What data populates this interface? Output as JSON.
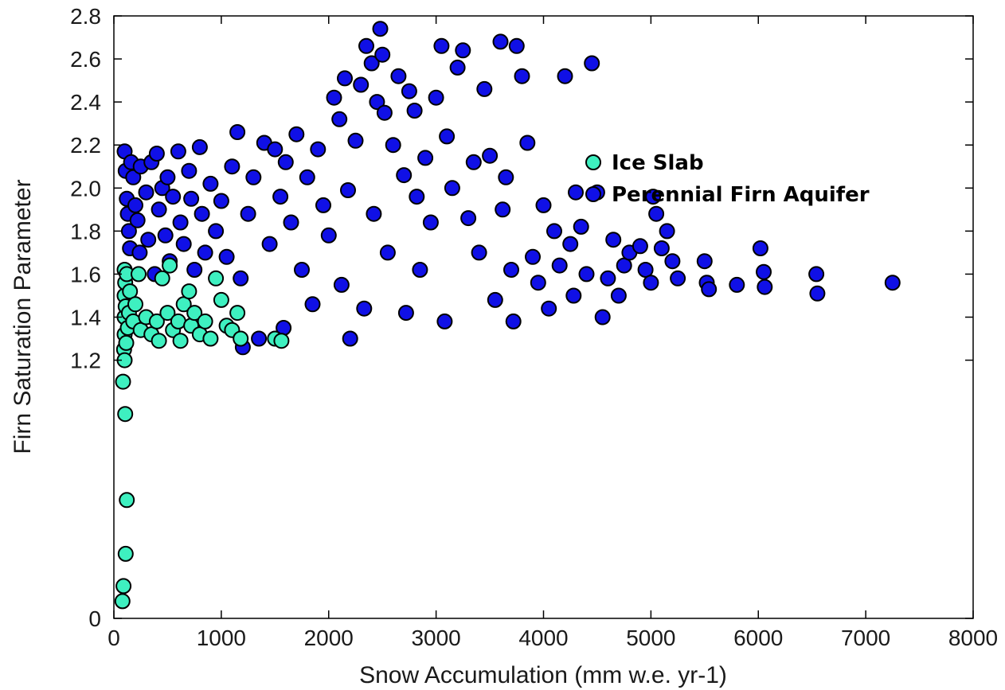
{
  "chart_data": {
    "type": "scatter",
    "title": "",
    "xlabel": "Snow Accumulation (mm w.e. yr-1)",
    "ylabel": "Firn Saturation Parameter",
    "xlim": [
      0,
      8000
    ],
    "ylim": [
      0,
      2.8
    ],
    "x_ticks": [
      "0",
      "1000",
      "2000",
      "3000",
      "4000",
      "5000",
      "6000",
      "7000",
      "8000"
    ],
    "y_ticks": [
      "0",
      "1.2",
      "1.4",
      "1.6",
      "1.8",
      "2.0",
      "2.2",
      "2.4",
      "2.6",
      "2.8"
    ],
    "y_tick_values": [
      0,
      1.2,
      1.4,
      1.6,
      1.8,
      2.0,
      2.2,
      2.4,
      2.6,
      2.8
    ],
    "grid": false,
    "legend_position": "upper-right inside plot",
    "series": [
      {
        "name": "Perennial Firn Aquifer",
        "color": "#1010e6",
        "edge_color": "#000000",
        "points": [
          [
            100,
            2.17
          ],
          [
            110,
            2.08
          ],
          [
            120,
            1.95
          ],
          [
            130,
            1.88
          ],
          [
            140,
            1.8
          ],
          [
            150,
            1.72
          ],
          [
            160,
            2.12
          ],
          [
            180,
            2.05
          ],
          [
            200,
            1.92
          ],
          [
            220,
            1.85
          ],
          [
            240,
            1.7
          ],
          [
            250,
            2.1
          ],
          [
            300,
            1.98
          ],
          [
            320,
            1.76
          ],
          [
            350,
            2.12
          ],
          [
            380,
            1.6
          ],
          [
            400,
            2.16
          ],
          [
            420,
            1.9
          ],
          [
            450,
            2.0
          ],
          [
            480,
            1.78
          ],
          [
            500,
            2.05
          ],
          [
            520,
            1.66
          ],
          [
            550,
            1.96
          ],
          [
            600,
            2.17
          ],
          [
            620,
            1.84
          ],
          [
            650,
            1.74
          ],
          [
            700,
            2.08
          ],
          [
            720,
            1.95
          ],
          [
            750,
            1.62
          ],
          [
            800,
            2.19
          ],
          [
            820,
            1.88
          ],
          [
            850,
            1.7
          ],
          [
            900,
            2.02
          ],
          [
            950,
            1.8
          ],
          [
            1000,
            1.94
          ],
          [
            1050,
            1.68
          ],
          [
            1100,
            2.1
          ],
          [
            1150,
            2.26
          ],
          [
            1180,
            1.58
          ],
          [
            1200,
            1.26
          ],
          [
            1250,
            1.88
          ],
          [
            1300,
            2.05
          ],
          [
            1350,
            1.3
          ],
          [
            1400,
            2.21
          ],
          [
            1450,
            1.74
          ],
          [
            1500,
            2.18
          ],
          [
            1550,
            1.96
          ],
          [
            1580,
            1.35
          ],
          [
            1600,
            2.12
          ],
          [
            1650,
            1.84
          ],
          [
            1700,
            2.25
          ],
          [
            1750,
            1.62
          ],
          [
            1800,
            2.05
          ],
          [
            1850,
            1.46
          ],
          [
            1900,
            2.18
          ],
          [
            1950,
            1.92
          ],
          [
            2000,
            1.78
          ],
          [
            2050,
            2.42
          ],
          [
            2100,
            2.32
          ],
          [
            2120,
            1.55
          ],
          [
            2150,
            2.51
          ],
          [
            2180,
            1.99
          ],
          [
            2200,
            1.3
          ],
          [
            2250,
            2.22
          ],
          [
            2300,
            2.48
          ],
          [
            2330,
            1.44
          ],
          [
            2350,
            2.66
          ],
          [
            2400,
            2.58
          ],
          [
            2420,
            1.88
          ],
          [
            2450,
            2.4
          ],
          [
            2480,
            2.74
          ],
          [
            2500,
            2.62
          ],
          [
            2520,
            2.35
          ],
          [
            2550,
            1.7
          ],
          [
            2600,
            2.2
          ],
          [
            2650,
            2.52
          ],
          [
            2700,
            2.06
          ],
          [
            2720,
            1.42
          ],
          [
            2750,
            2.45
          ],
          [
            2800,
            2.36
          ],
          [
            2820,
            1.96
          ],
          [
            2850,
            1.62
          ],
          [
            2900,
            2.14
          ],
          [
            2950,
            1.84
          ],
          [
            3000,
            2.42
          ],
          [
            3050,
            2.66
          ],
          [
            3080,
            1.38
          ],
          [
            3100,
            2.24
          ],
          [
            3150,
            2.0
          ],
          [
            3200,
            2.56
          ],
          [
            3250,
            2.64
          ],
          [
            3300,
            1.86
          ],
          [
            3350,
            2.12
          ],
          [
            3400,
            1.7
          ],
          [
            3450,
            2.46
          ],
          [
            3500,
            2.15
          ],
          [
            3550,
            1.48
          ],
          [
            3600,
            2.68
          ],
          [
            3620,
            1.9
          ],
          [
            3650,
            2.05
          ],
          [
            3700,
            1.62
          ],
          [
            3720,
            1.38
          ],
          [
            3750,
            2.66
          ],
          [
            3800,
            2.52
          ],
          [
            3850,
            2.21
          ],
          [
            3900,
            1.68
          ],
          [
            3950,
            1.56
          ],
          [
            4000,
            1.92
          ],
          [
            4050,
            1.44
          ],
          [
            4100,
            1.8
          ],
          [
            4150,
            1.64
          ],
          [
            4200,
            2.52
          ],
          [
            4250,
            1.74
          ],
          [
            4280,
            1.5
          ],
          [
            4300,
            1.98
          ],
          [
            4350,
            1.82
          ],
          [
            4400,
            1.6
          ],
          [
            4450,
            2.58
          ],
          [
            4500,
            1.98
          ],
          [
            4550,
            1.4
          ],
          [
            4600,
            1.58
          ],
          [
            4650,
            1.76
          ],
          [
            4700,
            1.5
          ],
          [
            4750,
            1.64
          ],
          [
            4800,
            1.7
          ],
          [
            4900,
            1.73
          ],
          [
            4950,
            1.62
          ],
          [
            5000,
            1.56
          ],
          [
            5020,
            1.96
          ],
          [
            5050,
            1.88
          ],
          [
            5100,
            1.72
          ],
          [
            5150,
            1.8
          ],
          [
            5200,
            1.66
          ],
          [
            5250,
            1.58
          ],
          [
            5500,
            1.66
          ],
          [
            5520,
            1.56
          ],
          [
            5540,
            1.53
          ],
          [
            5800,
            1.55
          ],
          [
            6020,
            1.72
          ],
          [
            6050,
            1.61
          ],
          [
            6060,
            1.54
          ],
          [
            6540,
            1.6
          ],
          [
            6550,
            1.51
          ],
          [
            7250,
            1.56
          ]
        ]
      },
      {
        "name": "Ice Slab",
        "color": "#3ef0c0",
        "edge_color": "#000000",
        "points": [
          [
            80,
            0.08
          ],
          [
            85,
            1.1
          ],
          [
            90,
            0.15
          ],
          [
            95,
            1.25
          ],
          [
            100,
            1.62
          ],
          [
            100,
            1.5
          ],
          [
            100,
            1.4
          ],
          [
            100,
            1.32
          ],
          [
            100,
            1.2
          ],
          [
            105,
            1.56
          ],
          [
            105,
            0.95
          ],
          [
            110,
            1.45
          ],
          [
            110,
            0.3
          ],
          [
            115,
            1.28
          ],
          [
            120,
            1.6
          ],
          [
            120,
            0.55
          ],
          [
            130,
            1.35
          ],
          [
            140,
            1.42
          ],
          [
            150,
            1.52
          ],
          [
            180,
            1.38
          ],
          [
            200,
            1.46
          ],
          [
            230,
            1.6
          ],
          [
            250,
            1.34
          ],
          [
            300,
            1.4
          ],
          [
            350,
            1.32
          ],
          [
            400,
            1.38
          ],
          [
            420,
            1.29
          ],
          [
            450,
            1.58
          ],
          [
            500,
            1.42
          ],
          [
            520,
            1.64
          ],
          [
            550,
            1.34
          ],
          [
            600,
            1.38
          ],
          [
            620,
            1.29
          ],
          [
            650,
            1.46
          ],
          [
            700,
            1.52
          ],
          [
            720,
            1.36
          ],
          [
            750,
            1.42
          ],
          [
            800,
            1.32
          ],
          [
            850,
            1.38
          ],
          [
            900,
            1.3
          ],
          [
            950,
            1.58
          ],
          [
            1000,
            1.48
          ],
          [
            1050,
            1.36
          ],
          [
            1100,
            1.34
          ],
          [
            1150,
            1.42
          ],
          [
            1180,
            1.3
          ],
          [
            1500,
            1.3
          ],
          [
            1560,
            1.29
          ]
        ]
      }
    ]
  }
}
